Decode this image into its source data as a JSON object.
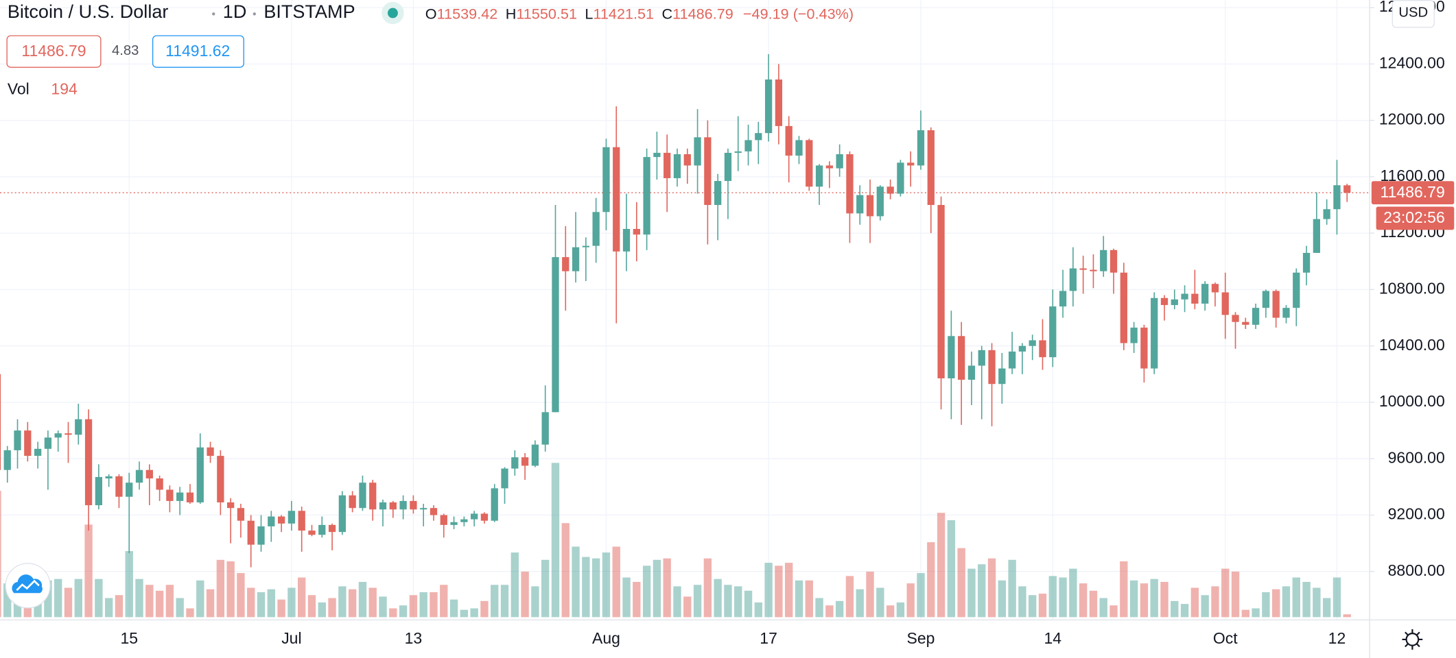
{
  "chart_data": {
    "type": "candlestick",
    "title": "Bitcoin / U.S. Dollar",
    "interval": "1D",
    "exchange": "BITSTAMP",
    "ohlc_labels": [
      "O",
      "H",
      "L",
      "C"
    ],
    "change": "−49.19 (−0.43%)",
    "last_price": 11486.79,
    "spread": 4.83,
    "ask": 11491.62,
    "volume_label": "Vol",
    "currency": "USD",
    "countdown": "23:02:56",
    "up_color": "#53a69c",
    "down_color": "#e1665d",
    "grid": true,
    "ylim": [
      8456,
      12854
    ],
    "yticks": [
      {
        "value": 8800,
        "label": "8800.00"
      },
      {
        "value": 9200,
        "label": "9200.00"
      },
      {
        "value": 9600,
        "label": "9600.00"
      },
      {
        "value": 10000,
        "label": "10000.00"
      },
      {
        "value": 10400,
        "label": "10400.00"
      },
      {
        "value": 10800,
        "label": "10800.00"
      },
      {
        "value": 11200,
        "label": "11200.00"
      },
      {
        "value": 11600,
        "label": "11600.00"
      },
      {
        "value": 12000,
        "label": "12000.00"
      },
      {
        "value": 12400,
        "label": "12400.00"
      },
      {
        "value": 12800,
        "label": "12800.00"
      }
    ],
    "volume_lim": [
      0,
      42000
    ],
    "categories": [
      null,
      null,
      null,
      null,
      null,
      null,
      null,
      null,
      null,
      null,
      null,
      null,
      null,
      "15",
      null,
      null,
      null,
      null,
      null,
      null,
      null,
      null,
      null,
      null,
      null,
      null,
      null,
      null,
      null,
      "Jul",
      null,
      null,
      null,
      null,
      null,
      null,
      null,
      null,
      null,
      null,
      null,
      "13",
      null,
      null,
      null,
      null,
      null,
      null,
      null,
      null,
      null,
      null,
      null,
      null,
      null,
      null,
      null,
      null,
      null,
      null,
      "Aug",
      null,
      null,
      null,
      null,
      null,
      null,
      null,
      null,
      null,
      null,
      null,
      null,
      null,
      null,
      null,
      "17",
      null,
      null,
      null,
      null,
      null,
      null,
      null,
      null,
      null,
      null,
      null,
      null,
      null,
      null,
      "Sep",
      null,
      null,
      null,
      null,
      null,
      null,
      null,
      null,
      null,
      null,
      null,
      null,
      "14",
      null,
      null,
      null,
      null,
      null,
      null,
      null,
      null,
      null,
      null,
      null,
      null,
      null,
      null,
      null,
      null,
      "Oct",
      null,
      null,
      null,
      null,
      null,
      null,
      null,
      null,
      null,
      null,
      "12",
      null
    ],
    "candles": [
      [
        10200,
        10230,
        9300,
        9520
      ],
      [
        9520,
        9690,
        9430,
        9660
      ],
      [
        9660,
        9880,
        9530,
        9800
      ],
      [
        9800,
        9860,
        9580,
        9620
      ],
      [
        9620,
        9720,
        9530,
        9670
      ],
      [
        9670,
        9800,
        9380,
        9750
      ],
      [
        9750,
        9800,
        9650,
        9780
      ],
      [
        9780,
        9860,
        9570,
        9770
      ],
      [
        9770,
        9990,
        9700,
        9880
      ],
      [
        9880,
        9950,
        9090,
        9270
      ],
      [
        9270,
        9560,
        9240,
        9470
      ],
      [
        9460,
        9490,
        9400,
        9475
      ],
      [
        9475,
        9490,
        9250,
        9330
      ],
      [
        9330,
        9500,
        8930,
        9430
      ],
      [
        9430,
        9580,
        9380,
        9520
      ],
      [
        9520,
        9560,
        9270,
        9460
      ],
      [
        9460,
        9480,
        9300,
        9380
      ],
      [
        9380,
        9410,
        9220,
        9300
      ],
      [
        9300,
        9400,
        9200,
        9360
      ],
      [
        9360,
        9420,
        9280,
        9290
      ],
      [
        9290,
        9780,
        9280,
        9680
      ],
      [
        9680,
        9720,
        9570,
        9620
      ],
      [
        9620,
        9660,
        9200,
        9290
      ],
      [
        9290,
        9320,
        9000,
        9250
      ],
      [
        9250,
        9280,
        9040,
        9160
      ],
      [
        9160,
        9200,
        8830,
        8990
      ],
      [
        8990,
        9200,
        8940,
        9120
      ],
      [
        9120,
        9230,
        9010,
        9190
      ],
      [
        9190,
        9200,
        9080,
        9140
      ],
      [
        9140,
        9300,
        9090,
        9230
      ],
      [
        9230,
        9260,
        8940,
        9090
      ],
      [
        9090,
        9130,
        9050,
        9060
      ],
      [
        9060,
        9190,
        9040,
        9130
      ],
      [
        9130,
        9140,
        8950,
        9080
      ],
      [
        9080,
        9370,
        9060,
        9340
      ],
      [
        9340,
        9370,
        9220,
        9250
      ],
      [
        9250,
        9480,
        9230,
        9430
      ],
      [
        9430,
        9450,
        9160,
        9240
      ],
      [
        9240,
        9310,
        9120,
        9290
      ],
      [
        9290,
        9300,
        9180,
        9240
      ],
      [
        9240,
        9340,
        9170,
        9300
      ],
      [
        9300,
        9340,
        9210,
        9240
      ],
      [
        9240,
        9280,
        9120,
        9250
      ],
      [
        9250,
        9270,
        9160,
        9200
      ],
      [
        9200,
        9210,
        9040,
        9130
      ],
      [
        9130,
        9190,
        9100,
        9150
      ],
      [
        9150,
        9190,
        9120,
        9170
      ],
      [
        9170,
        9230,
        9120,
        9210
      ],
      [
        9210,
        9220,
        9140,
        9160
      ],
      [
        9160,
        9420,
        9150,
        9390
      ],
      [
        9390,
        9540,
        9280,
        9530
      ],
      [
        9530,
        9660,
        9480,
        9610
      ],
      [
        9610,
        9640,
        9450,
        9550
      ],
      [
        9550,
        9730,
        9540,
        9700
      ],
      [
        9700,
        10120,
        9650,
        9930
      ],
      [
        9930,
        11400,
        9930,
        11030
      ],
      [
        11030,
        11250,
        10650,
        10930
      ],
      [
        10930,
        11350,
        10850,
        11100
      ],
      [
        11100,
        11170,
        10860,
        11110
      ],
      [
        11110,
        11450,
        10990,
        11350
      ],
      [
        11350,
        11870,
        11220,
        11810
      ],
      [
        11810,
        12100,
        10560,
        11070
      ],
      [
        11070,
        11480,
        10930,
        11230
      ],
      [
        11230,
        11420,
        11000,
        11190
      ],
      [
        11190,
        11800,
        11080,
        11740
      ],
      [
        11740,
        11920,
        11580,
        11770
      ],
      [
        11770,
        11900,
        11350,
        11590
      ],
      [
        11590,
        11800,
        11530,
        11760
      ],
      [
        11760,
        11800,
        11550,
        11680
      ],
      [
        11680,
        12080,
        11480,
        11880
      ],
      [
        11880,
        12000,
        11120,
        11400
      ],
      [
        11400,
        11620,
        11150,
        11570
      ],
      [
        11570,
        11800,
        11300,
        11770
      ],
      [
        11770,
        12030,
        11640,
        11780
      ],
      [
        11780,
        11970,
        11680,
        11860
      ],
      [
        11860,
        11990,
        11690,
        11910
      ],
      [
        11910,
        12470,
        11850,
        12290
      ],
      [
        12290,
        12400,
        11830,
        11960
      ],
      [
        11960,
        12030,
        11560,
        11750
      ],
      [
        11750,
        11890,
        11690,
        11860
      ],
      [
        11860,
        11870,
        11500,
        11530
      ],
      [
        11530,
        11690,
        11400,
        11680
      ],
      [
        11680,
        11710,
        11520,
        11660
      ],
      [
        11660,
        11830,
        11600,
        11760
      ],
      [
        11760,
        11780,
        11130,
        11340
      ],
      [
        11340,
        11540,
        11260,
        11470
      ],
      [
        11470,
        11580,
        11130,
        11320
      ],
      [
        11320,
        11540,
        11290,
        11530
      ],
      [
        11530,
        11580,
        11440,
        11480
      ],
      [
        11480,
        11720,
        11460,
        11700
      ],
      [
        11700,
        11780,
        11530,
        11680
      ],
      [
        11680,
        12070,
        11650,
        11930
      ],
      [
        11930,
        11950,
        11200,
        11400
      ],
      [
        11400,
        11460,
        9950,
        10170
      ],
      [
        10170,
        10650,
        9880,
        10470
      ],
      [
        10470,
        10570,
        9840,
        10160
      ],
      [
        10160,
        10360,
        9980,
        10260
      ],
      [
        10260,
        10400,
        9880,
        10370
      ],
      [
        10370,
        10420,
        9830,
        10130
      ],
      [
        10130,
        10350,
        9990,
        10240
      ],
      [
        10240,
        10500,
        10200,
        10360
      ],
      [
        10360,
        10420,
        10200,
        10400
      ],
      [
        10400,
        10480,
        10300,
        10440
      ],
      [
        10440,
        10590,
        10230,
        10320
      ],
      [
        10320,
        10800,
        10250,
        10680
      ],
      [
        10680,
        10940,
        10600,
        10790
      ],
      [
        10790,
        11100,
        10680,
        10950
      ],
      [
        10950,
        11040,
        10770,
        10940
      ],
      [
        10940,
        11050,
        10810,
        10930
      ],
      [
        10930,
        11180,
        10890,
        11080
      ],
      [
        11080,
        11090,
        10770,
        10920
      ],
      [
        10920,
        10990,
        10370,
        10420
      ],
      [
        10420,
        10570,
        10350,
        10530
      ],
      [
        10530,
        10550,
        10140,
        10240
      ],
      [
        10240,
        10780,
        10200,
        10740
      ],
      [
        10740,
        10760,
        10580,
        10690
      ],
      [
        10690,
        10800,
        10660,
        10730
      ],
      [
        10730,
        10830,
        10640,
        10770
      ],
      [
        10770,
        10940,
        10660,
        10700
      ],
      [
        10700,
        10860,
        10650,
        10840
      ],
      [
        10840,
        10850,
        10680,
        10780
      ],
      [
        10780,
        10920,
        10450,
        10620
      ],
      [
        10620,
        10640,
        10380,
        10570
      ],
      [
        10570,
        10600,
        10520,
        10550
      ],
      [
        10550,
        10700,
        10520,
        10670
      ],
      [
        10670,
        10800,
        10600,
        10790
      ],
      [
        10790,
        10800,
        10530,
        10600
      ],
      [
        10600,
        10690,
        10560,
        10670
      ],
      [
        10670,
        10950,
        10540,
        10920
      ],
      [
        10920,
        11110,
        10830,
        11060
      ],
      [
        11060,
        11490,
        11060,
        11300
      ],
      [
        11300,
        11440,
        11260,
        11370
      ],
      [
        11370,
        11720,
        11190,
        11540
      ],
      [
        11539.42,
        11550.51,
        11421.51,
        11486.79
      ]
    ],
    "volume": [
      8600,
      2300,
      2500,
      2100,
      1500,
      2500,
      2600,
      2000,
      2600,
      6300,
      2600,
      1300,
      1500,
      4500,
      2600,
      2200,
      1800,
      2200,
      1300,
      600,
      2500,
      1900,
      3900,
      3800,
      3000,
      2000,
      1700,
      1900,
      1200,
      2000,
      2700,
      1500,
      1000,
      1300,
      2100,
      1900,
      2400,
      2000,
      1400,
      600,
      800,
      1500,
      1700,
      1700,
      2200,
      1200,
      500,
      600,
      1100,
      2200,
      2200,
      4400,
      3100,
      2100,
      3900,
      10500,
      6400,
      4800,
      4100,
      4000,
      4400,
      4800,
      2700,
      2400,
      3500,
      3900,
      4000,
      2100,
      1400,
      2200,
      4000,
      2600,
      2200,
      2100,
      1800,
      1000,
      3700,
      3500,
      3700,
      2500,
      2500,
      1300,
      800,
      1100,
      2800,
      1900,
      3100,
      2000,
      800,
      1000,
      2300,
      3000,
      5100,
      7100,
      6600,
      4700,
      3300,
      3600,
      4000,
      2500,
      3900,
      2100,
      1500,
      1600,
      2800,
      2700,
      3300,
      2300,
      1800,
      1300,
      800,
      3800,
      2500,
      2300,
      2600,
      2400,
      1100,
      900,
      2000,
      1500,
      2100,
      3300,
      3100,
      500,
      600,
      1700,
      1900,
      2100,
      2700,
      2400,
      2000,
      1300,
      2700,
      194
    ]
  }
}
